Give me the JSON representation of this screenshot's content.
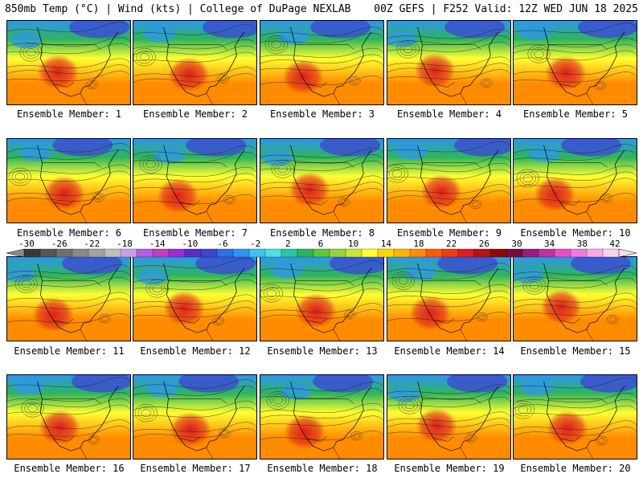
{
  "header": {
    "left": "850mb Temp (°C) | Wind (kts) | College of DuPage NEXLAB",
    "right": "00Z GEFS | F252 Valid: 12Z WED JUN 18 2025"
  },
  "panels": [
    {
      "label": "Ensemble Member: 1"
    },
    {
      "label": "Ensemble Member: 2"
    },
    {
      "label": "Ensemble Member: 3"
    },
    {
      "label": "Ensemble Member: 4"
    },
    {
      "label": "Ensemble Member: 5"
    },
    {
      "label": "Ensemble Member: 6"
    },
    {
      "label": "Ensemble Member: 7"
    },
    {
      "label": "Ensemble Member: 8"
    },
    {
      "label": "Ensemble Member: 9"
    },
    {
      "label": "Ensemble Member: 10"
    },
    {
      "label": "Ensemble Member: 11"
    },
    {
      "label": "Ensemble Member: 12"
    },
    {
      "label": "Ensemble Member: 13"
    },
    {
      "label": "Ensemble Member: 14"
    },
    {
      "label": "Ensemble Member: 15"
    },
    {
      "label": "Ensemble Member: 16"
    },
    {
      "label": "Ensemble Member: 17"
    },
    {
      "label": "Ensemble Member: 18"
    },
    {
      "label": "Ensemble Member: 19"
    },
    {
      "label": "Ensemble Member: 20"
    }
  ],
  "colorbar": {
    "ticks": [
      "-30",
      "-26",
      "-22",
      "-18",
      "-14",
      "-10",
      "-6",
      "-2",
      "2",
      "6",
      "10",
      "14",
      "18",
      "22",
      "26",
      "30",
      "34",
      "38",
      "42"
    ],
    "colors": [
      "#3a3a3a",
      "#555555",
      "#707070",
      "#8a8a8a",
      "#a3a3a3",
      "#bebebe",
      "#c8a0e6",
      "#b05fe0",
      "#c040c0",
      "#9a2fd1",
      "#5a2dc8",
      "#3c46d2",
      "#2f6ee6",
      "#2e96f0",
      "#3cc3f5",
      "#4fe0e0",
      "#24c7a0",
      "#2fb45a",
      "#5ac83c",
      "#96d23c",
      "#c8e632",
      "#ffff32",
      "#ffd700",
      "#ffb400",
      "#ff8c00",
      "#ff5a00",
      "#f03c14",
      "#dc1e1e",
      "#b41414",
      "#8c0a0a",
      "#780a3c",
      "#961e78",
      "#be32a0",
      "#e650c8",
      "#f07ddc",
      "#f5aae6",
      "#fad2f0"
    ]
  },
  "colors": {
    "cold": "#3c46d2",
    "cool": "#2e96f0",
    "mild": "#2fb45a",
    "warm": "#ffff32",
    "hot": "#ff8c00",
    "very_hot": "#dc1e1e"
  }
}
